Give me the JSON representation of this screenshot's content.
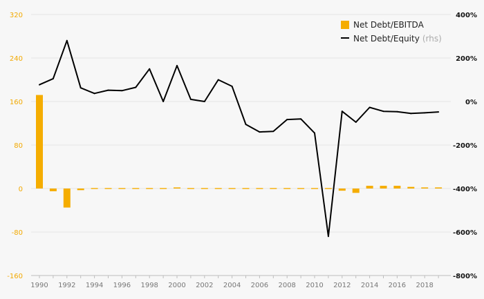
{
  "chart_data": {
    "type": "bar+line",
    "x": [
      1990,
      1991,
      1992,
      1993,
      1994,
      1995,
      1996,
      1997,
      1998,
      1999,
      2000,
      2001,
      2002,
      2003,
      2004,
      2005,
      2006,
      2007,
      2008,
      2009,
      2010,
      2011,
      2012,
      2013,
      2014,
      2015,
      2016,
      2017,
      2018,
      2019
    ],
    "series": [
      {
        "name": "Net Debt/EBITDA",
        "kind": "bar",
        "axis": "left",
        "color": "#f5ad00",
        "values": [
          172,
          -5,
          -35,
          -3,
          -1,
          0,
          -1,
          -1,
          -1,
          0,
          2,
          0,
          0,
          -1,
          0,
          -1,
          -1,
          1,
          -1,
          1,
          -1,
          0,
          -4,
          -8,
          5,
          5,
          5,
          3,
          2,
          2
        ]
      },
      {
        "name": "Net Debt/Equity",
        "note": "(rhs)",
        "kind": "line",
        "axis": "right",
        "color": "#000000",
        "values": [
          77,
          105,
          280,
          63,
          37,
          52,
          50,
          65,
          150,
          0,
          165,
          10,
          0,
          100,
          70,
          -105,
          -140,
          -137,
          -83,
          -80,
          -145,
          -620,
          -45,
          -95,
          -27,
          -45,
          -47,
          -55,
          -52,
          -48
        ]
      }
    ],
    "yleft": {
      "min": -160,
      "max": 320,
      "ticks": [
        "320",
        "240",
        "160",
        "80",
        "0",
        "-80",
        "-160"
      ]
    },
    "yright": {
      "min": -800,
      "max": 400,
      "ticks": [
        "400%",
        "200%",
        "0%",
        "-200%",
        "-400%",
        "-600%",
        "-800%"
      ]
    },
    "xticks": [
      "1990",
      "1992",
      "1994",
      "1996",
      "1998",
      "2000",
      "2002",
      "2004",
      "2006",
      "2008",
      "2010",
      "2012",
      "2014",
      "2016",
      "2018"
    ],
    "legend": {
      "position": "top-right",
      "labels": [
        "Net Debt/EBITDA",
        "Net Debt/Equity"
      ],
      "note": "(rhs)"
    }
  }
}
